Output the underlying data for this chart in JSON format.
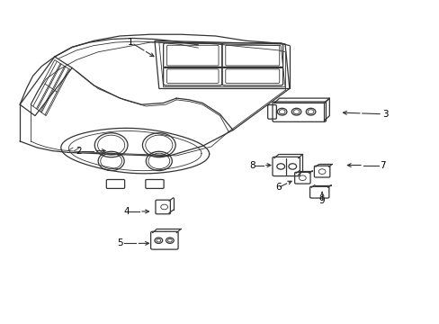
{
  "background_color": "#ffffff",
  "line_color": "#333333",
  "text_color": "#000000",
  "figsize": [
    4.89,
    3.6
  ],
  "dpi": 100,
  "label_data": [
    [
      1,
      0.295,
      0.875,
      0.355,
      0.825
    ],
    [
      2,
      0.175,
      0.535,
      0.245,
      0.535
    ],
    [
      3,
      0.88,
      0.65,
      0.775,
      0.655
    ],
    [
      4,
      0.285,
      0.345,
      0.345,
      0.345
    ],
    [
      5,
      0.27,
      0.245,
      0.345,
      0.245
    ],
    [
      6,
      0.635,
      0.42,
      0.672,
      0.445
    ],
    [
      7,
      0.875,
      0.49,
      0.785,
      0.49
    ],
    [
      8,
      0.575,
      0.49,
      0.625,
      0.49
    ],
    [
      9,
      0.735,
      0.38,
      0.735,
      0.415
    ]
  ]
}
